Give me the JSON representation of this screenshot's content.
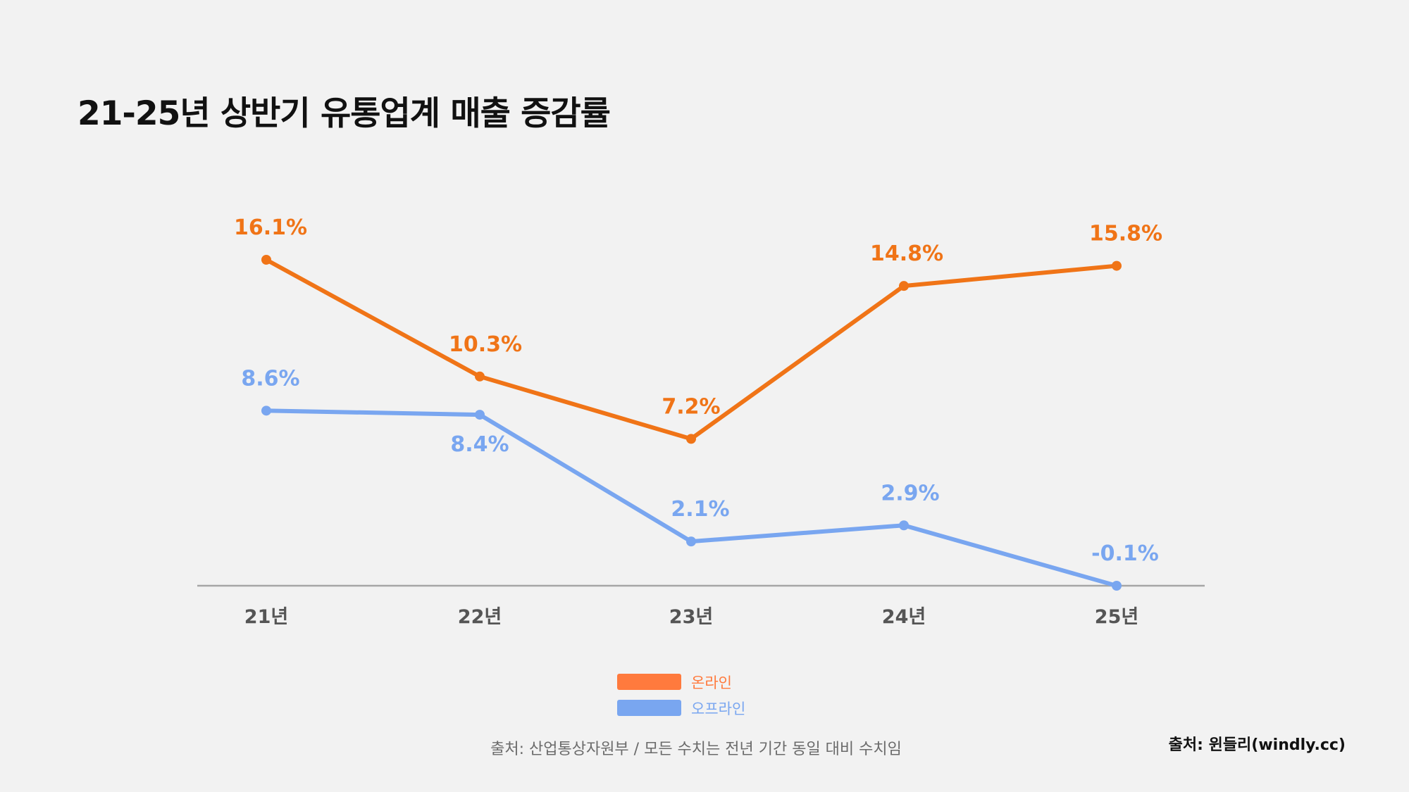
{
  "chart_data": {
    "type": "line",
    "title": "21-25년 상반기 유통업계 매출 증감률",
    "categories": [
      "21년",
      "22년",
      "23년",
      "24년",
      "25년"
    ],
    "series": [
      {
        "name": "온라인",
        "color": "#f07417",
        "legend_color": "#ff7a3d",
        "values": [
          16.1,
          10.3,
          7.2,
          14.8,
          15.8
        ],
        "labels": [
          "16.1%",
          "10.3%",
          "7.2%",
          "14.8%",
          "15.8%"
        ]
      },
      {
        "name": "오프라인",
        "color": "#79a6f0",
        "legend_color": "#79a6f0",
        "values": [
          8.6,
          8.4,
          2.1,
          2.9,
          -0.1
        ],
        "labels": [
          "8.6%",
          "8.4%",
          "2.1%",
          "2.9%",
          "-0.1%"
        ]
      }
    ],
    "xlabel": "",
    "ylabel": "",
    "ylim": [
      -0.1,
      16.1
    ],
    "grid": false,
    "legend_position": "bottom-center",
    "note": "출처: 산업통상자원부 / 모든 수치는 전년 기간 동일 대비 수치임"
  },
  "credit": "출처: 윈들리(windly.cc)",
  "colors": {
    "background": "#f2f2f2",
    "title": "#111111",
    "axis": "#a6a6a6",
    "tick_label": "#555555"
  }
}
